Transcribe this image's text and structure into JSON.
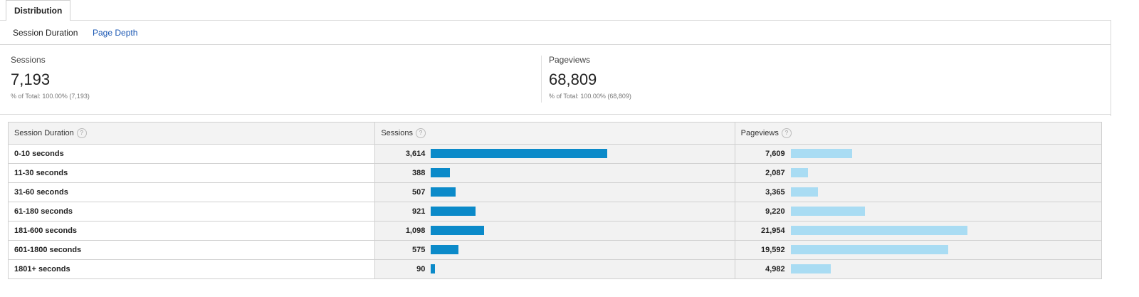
{
  "tabs": {
    "distribution": "Distribution"
  },
  "subnav": {
    "active": "Session Duration",
    "other": "Page Depth"
  },
  "scorecards": {
    "sessions": {
      "label": "Sessions",
      "value": "7,193",
      "pct": "% of Total: 100.00% (7,193)"
    },
    "pageviews": {
      "label": "Pageviews",
      "value": "68,809",
      "pct": "% of Total: 100.00% (68,809)"
    }
  },
  "table": {
    "headers": {
      "dimension": "Session Duration",
      "sessions": "Sessions",
      "pageviews": "Pageviews",
      "help": "?"
    },
    "rows": [
      {
        "label": "0-10 seconds",
        "sessions": "3,614",
        "pageviews": "7,609"
      },
      {
        "label": "11-30 seconds",
        "sessions": "388",
        "pageviews": "2,087"
      },
      {
        "label": "31-60 seconds",
        "sessions": "507",
        "pageviews": "3,365"
      },
      {
        "label": "61-180 seconds",
        "sessions": "921",
        "pageviews": "9,220"
      },
      {
        "label": "181-600 seconds",
        "sessions": "1,098",
        "pageviews": "21,954"
      },
      {
        "label": "601-1800 seconds",
        "sessions": "575",
        "pageviews": "19,592"
      },
      {
        "label": "1801+ seconds",
        "sessions": "90",
        "pageviews": "4,982"
      }
    ]
  },
  "chart_data": {
    "type": "bar",
    "categories": [
      "0-10 seconds",
      "11-30 seconds",
      "31-60 seconds",
      "61-180 seconds",
      "181-600 seconds",
      "601-1800 seconds",
      "1801+ seconds"
    ],
    "series": [
      {
        "name": "Sessions",
        "values": [
          3614,
          388,
          507,
          921,
          1098,
          575,
          90
        ],
        "color": "#0b8ac9"
      },
      {
        "name": "Pageviews",
        "values": [
          7609,
          2087,
          3365,
          9220,
          21954,
          19592,
          4982
        ],
        "color": "#a9dcf3"
      }
    ]
  }
}
